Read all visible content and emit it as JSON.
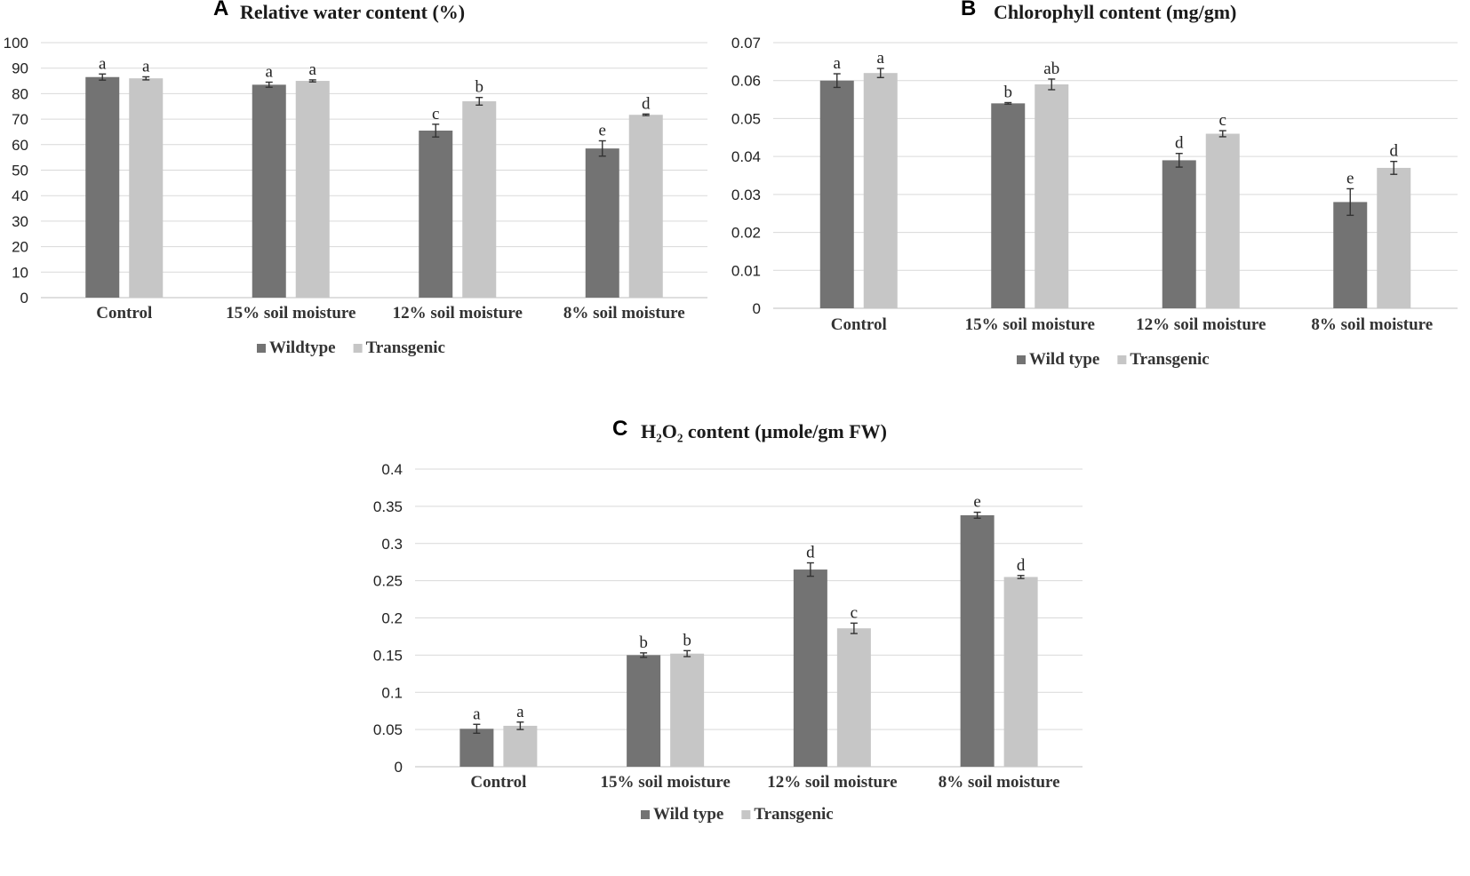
{
  "colors": {
    "wild": "#737373",
    "trans": "#c6c6c6",
    "grid": "#d9d9d9",
    "text": "#222222"
  },
  "chart_data": [
    {
      "type": "bar",
      "panel": "A",
      "title": "Relative water content (%)",
      "categories": [
        "Control",
        "15% soil moisture",
        "12% soil moisture",
        "8% soil moisture"
      ],
      "ylim": [
        0,
        100
      ],
      "yticks": [
        0,
        10,
        20,
        30,
        40,
        50,
        60,
        70,
        80,
        90,
        100
      ],
      "ytick_labels": [
        "0",
        "10",
        "20",
        "30",
        "40",
        "50",
        "60",
        "70",
        "80",
        "90",
        "100"
      ],
      "grid": true,
      "legend": "bottom",
      "series": [
        {
          "name": "Wildtype",
          "values": [
            86.5,
            83.5,
            65.5,
            58.5
          ],
          "errors": [
            1.2,
            1.0,
            2.5,
            3.0
          ],
          "letters": [
            "a",
            "a",
            "c",
            "e"
          ]
        },
        {
          "name": "Transgenic",
          "values": [
            86,
            85,
            77,
            71.7
          ],
          "errors": [
            0.6,
            0.4,
            1.5,
            0.3
          ],
          "letters": [
            "a",
            "a",
            "b",
            "d"
          ]
        }
      ]
    },
    {
      "type": "bar",
      "panel": "B",
      "title": "Chlorophyll content (mg/gm)",
      "categories": [
        "Control",
        "15% soil moisture",
        "12% soil moisture",
        "8% soil moisture"
      ],
      "ylim": [
        0,
        0.07
      ],
      "yticks": [
        0,
        0.01,
        0.02,
        0.03,
        0.04,
        0.05,
        0.06,
        0.07
      ],
      "ytick_labels": [
        "0",
        "0.01",
        "0.02",
        "0.03",
        "0.04",
        "0.05",
        "0.06",
        "0.07"
      ],
      "grid": true,
      "legend": "bottom",
      "series": [
        {
          "name": "Wild type",
          "values": [
            0.06,
            0.054,
            0.039,
            0.028
          ],
          "errors": [
            0.0018,
            0.0002,
            0.0018,
            0.0035
          ],
          "letters": [
            "a",
            "b",
            "d",
            "e"
          ]
        },
        {
          "name": "Transgenic",
          "values": [
            0.062,
            0.059,
            0.046,
            0.037
          ],
          "errors": [
            0.0012,
            0.0014,
            0.0008,
            0.0017
          ],
          "letters": [
            "a",
            "ab",
            "c",
            "d"
          ]
        }
      ]
    },
    {
      "type": "bar",
      "panel": "C",
      "title": "H₂O₂ content (µmole/gm FW)",
      "categories": [
        "Control",
        "15% soil moisture",
        "12% soil moisture",
        "8% soil moisture"
      ],
      "ylim": [
        0,
        0.4
      ],
      "yticks": [
        0,
        0.05,
        0.1,
        0.15,
        0.2,
        0.25,
        0.3,
        0.35,
        0.4
      ],
      "ytick_labels": [
        "0",
        "0.05",
        "0.1",
        "0.15",
        "0.2",
        "0.25",
        "0.3",
        "0.35",
        "0.4"
      ],
      "grid": true,
      "legend": "bottom",
      "series": [
        {
          "name": "Wild type",
          "values": [
            0.051,
            0.15,
            0.265,
            0.338
          ],
          "errors": [
            0.006,
            0.003,
            0.009,
            0.004
          ],
          "letters": [
            "a",
            "b",
            "d",
            "e"
          ]
        },
        {
          "name": "Transgenic",
          "values": [
            0.055,
            0.152,
            0.186,
            0.255
          ],
          "errors": [
            0.005,
            0.004,
            0.007,
            0.002
          ],
          "letters": [
            "a",
            "b",
            "c",
            "d"
          ]
        }
      ]
    }
  ]
}
